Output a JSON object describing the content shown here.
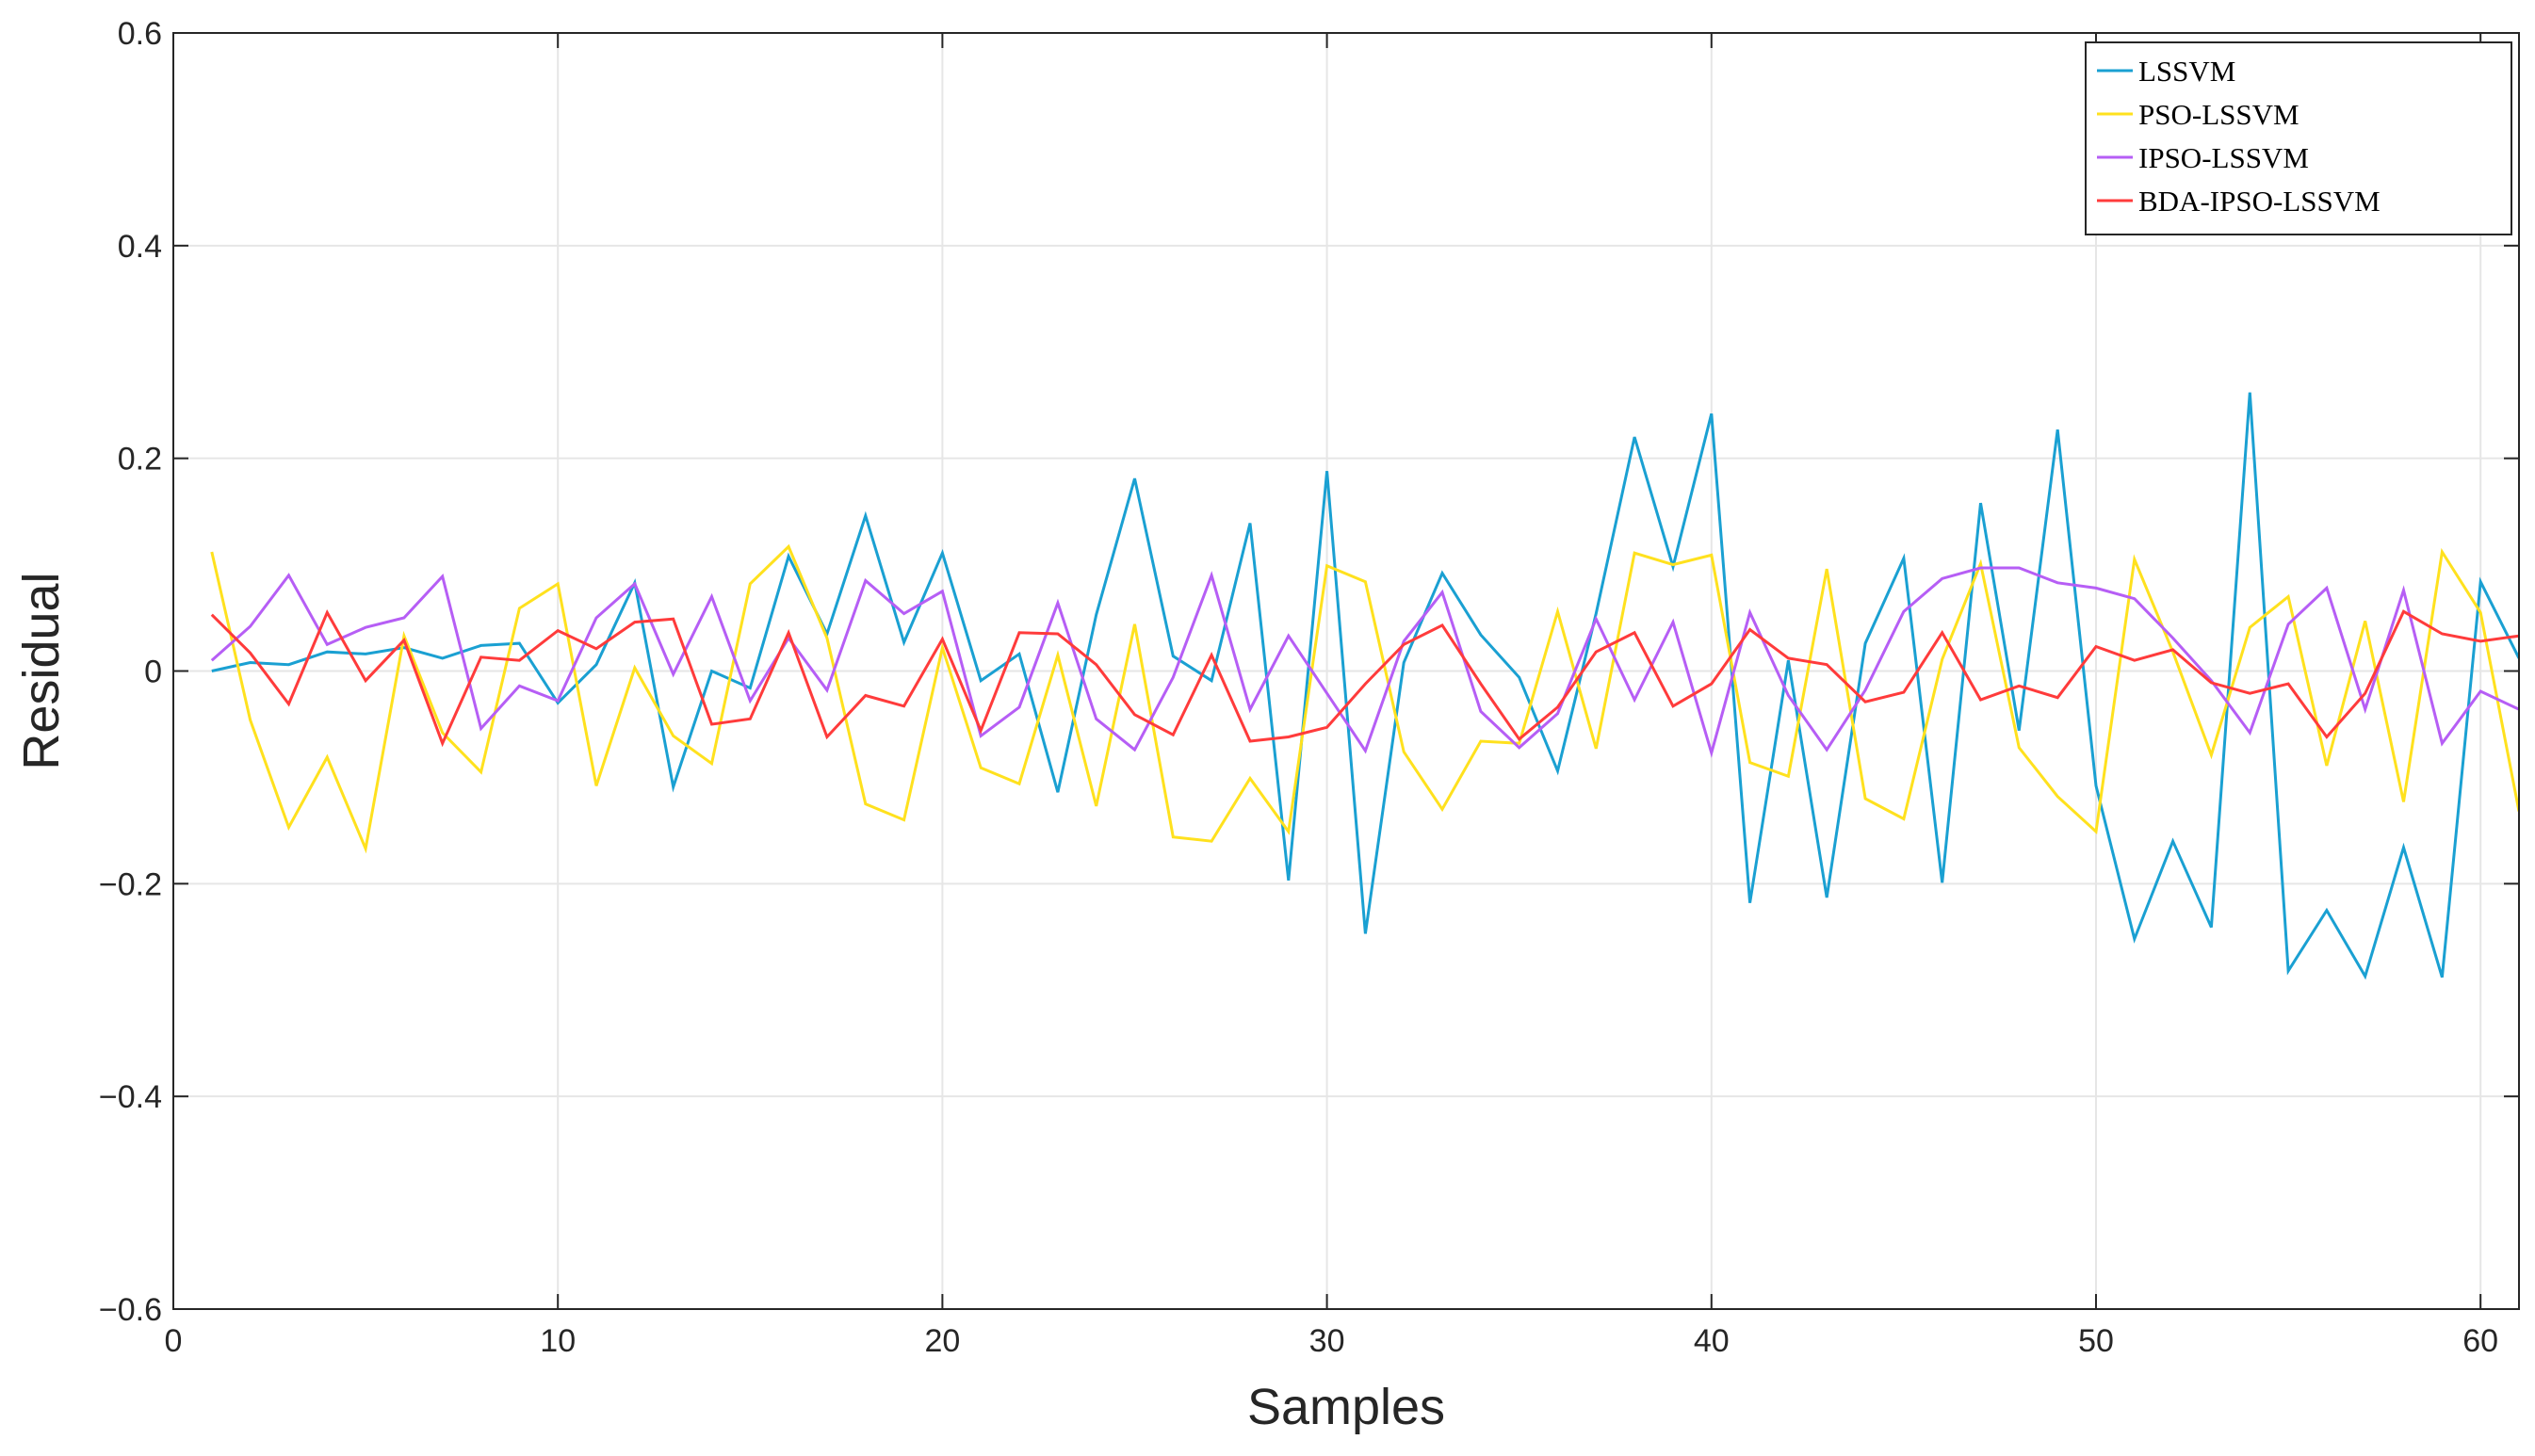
{
  "chart_data": {
    "type": "line",
    "title": "",
    "xlabel": "Samples",
    "ylabel": "Residual",
    "xlim": [
      0,
      61
    ],
    "ylim": [
      -0.6,
      0.6
    ],
    "xticks": [
      0,
      10,
      20,
      30,
      40,
      50,
      60
    ],
    "xtick_labels": [
      "0",
      "10",
      "20",
      "30",
      "40",
      "50",
      "60"
    ],
    "yticks": [
      -0.6,
      -0.4,
      -0.2,
      0,
      0.2,
      0.4,
      0.6
    ],
    "ytick_labels": [
      "−0.6",
      "−0.4",
      "−0.2",
      "0",
      "0.2",
      "0.4",
      "0.6"
    ],
    "grid": true,
    "legend_position": "top-right",
    "x": [
      1,
      2,
      3,
      4,
      5,
      6,
      7,
      8,
      9,
      10,
      11,
      12,
      13,
      14,
      15,
      16,
      17,
      18,
      19,
      20,
      21,
      22,
      23,
      24,
      25,
      26,
      27,
      28,
      29,
      30,
      31,
      32,
      33,
      34,
      35,
      36,
      37,
      38,
      39,
      40,
      41,
      42,
      43,
      44,
      45,
      46,
      47,
      48,
      49,
      50,
      51,
      52,
      53,
      54,
      55,
      56,
      57,
      58,
      59,
      60,
      61
    ],
    "series": [
      {
        "name": "LSSVM",
        "color": "#1aa0d2",
        "values": [
          0.0,
          0.008,
          0.006,
          0.018,
          0.016,
          0.022,
          0.012,
          0.024,
          0.026,
          -0.03,
          0.006,
          0.083,
          -0.109,
          0.0,
          -0.016,
          0.108,
          0.035,
          0.146,
          0.027,
          0.111,
          -0.009,
          0.016,
          -0.114,
          0.053,
          0.181,
          0.014,
          -0.009,
          0.139,
          -0.197,
          0.188,
          -0.247,
          0.008,
          0.092,
          0.034,
          -0.006,
          -0.094,
          0.054,
          0.22,
          0.098,
          0.242,
          -0.218,
          0.01,
          -0.213,
          0.026,
          0.106,
          -0.199,
          0.158,
          -0.056,
          0.227,
          -0.108,
          -0.252,
          -0.16,
          -0.241,
          0.262,
          -0.282,
          -0.225,
          -0.287,
          -0.166,
          -0.288,
          0.084,
          0.012
        ]
      },
      {
        "name": "PSO-LSSVM",
        "color": "#ffe11e",
        "values": [
          0.112,
          -0.046,
          -0.147,
          -0.081,
          -0.167,
          0.033,
          -0.058,
          -0.095,
          0.059,
          0.082,
          -0.108,
          0.003,
          -0.061,
          -0.087,
          0.082,
          0.117,
          0.031,
          -0.125,
          -0.14,
          0.022,
          -0.091,
          -0.106,
          0.015,
          -0.127,
          0.044,
          -0.156,
          -0.16,
          -0.101,
          -0.151,
          0.099,
          0.084,
          -0.076,
          -0.13,
          -0.066,
          -0.068,
          0.056,
          -0.073,
          0.111,
          0.1,
          0.109,
          -0.086,
          -0.099,
          0.096,
          -0.12,
          -0.139,
          0.011,
          0.101,
          -0.072,
          -0.118,
          -0.151,
          0.105,
          0.018,
          -0.079,
          0.041,
          0.07,
          -0.089,
          0.047,
          -0.123,
          0.112,
          0.055,
          -0.132
        ]
      },
      {
        "name": "IPSO-LSSVM",
        "color": "#b65ef5",
        "values": [
          0.01,
          0.042,
          0.09,
          0.025,
          0.041,
          0.05,
          0.089,
          -0.054,
          -0.014,
          -0.028,
          0.05,
          0.082,
          -0.003,
          0.07,
          -0.028,
          0.031,
          -0.018,
          0.085,
          0.054,
          0.075,
          -0.061,
          -0.034,
          0.064,
          -0.045,
          -0.074,
          -0.006,
          0.09,
          -0.036,
          0.033,
          -0.021,
          -0.075,
          0.028,
          0.074,
          -0.038,
          -0.072,
          -0.04,
          0.049,
          -0.027,
          0.046,
          -0.077,
          0.055,
          -0.023,
          -0.074,
          -0.018,
          0.056,
          0.087,
          0.097,
          0.097,
          0.083,
          0.078,
          0.068,
          0.031,
          -0.009,
          -0.058,
          0.044,
          0.078,
          -0.036,
          0.076,
          -0.068,
          -0.019,
          -0.036
        ]
      },
      {
        "name": "BDA-IPSO-LSSVM",
        "color": "#ff3b3b",
        "values": [
          0.053,
          0.017,
          -0.031,
          0.055,
          -0.009,
          0.029,
          -0.068,
          0.013,
          0.01,
          0.038,
          0.021,
          0.046,
          0.049,
          -0.05,
          -0.045,
          0.036,
          -0.062,
          -0.023,
          -0.033,
          0.03,
          -0.056,
          0.036,
          0.035,
          0.006,
          -0.041,
          -0.06,
          0.015,
          -0.066,
          -0.062,
          -0.053,
          -0.012,
          0.025,
          0.043,
          -0.012,
          -0.064,
          -0.034,
          0.018,
          0.036,
          -0.033,
          -0.012,
          0.039,
          0.012,
          0.006,
          -0.029,
          -0.02,
          0.036,
          -0.027,
          -0.014,
          -0.025,
          0.023,
          0.01,
          0.02,
          -0.011,
          -0.021,
          -0.012,
          -0.062,
          -0.021,
          0.056,
          0.035,
          0.028,
          0.033
        ]
      }
    ]
  }
}
